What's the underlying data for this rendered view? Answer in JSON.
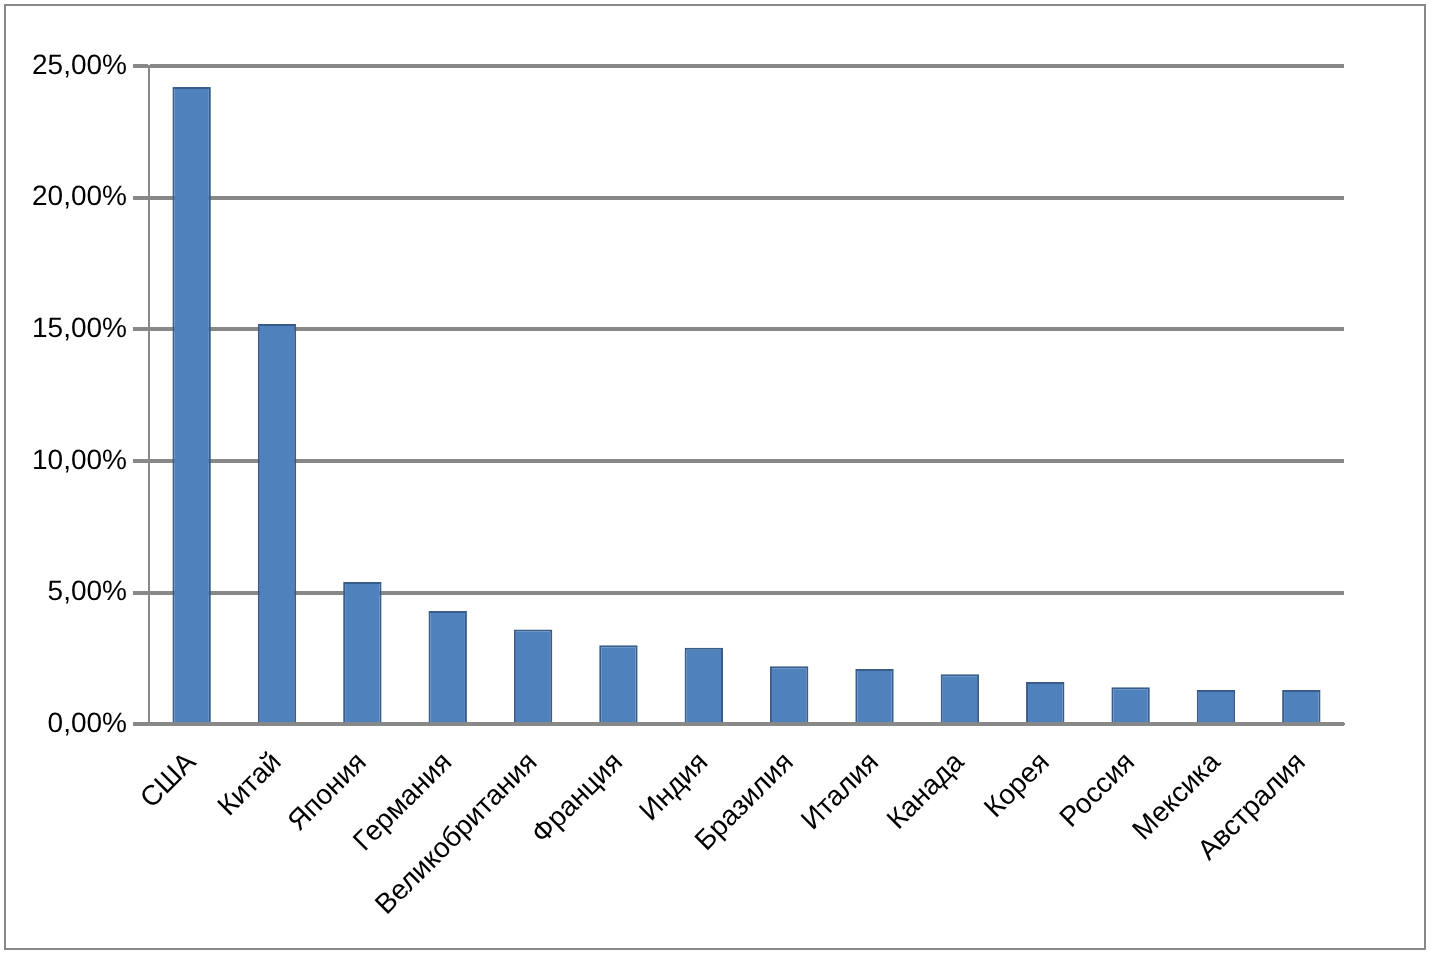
{
  "chart_data": {
    "type": "bar",
    "categories": [
      "США",
      "Китай",
      "Япония",
      "Германия",
      "Великобритания",
      "Франция",
      "Индия",
      "Бразилия",
      "Италия",
      "Канада",
      "Корея",
      "Россия",
      "Мексика",
      "Австралия"
    ],
    "values": [
      24.2,
      15.2,
      5.4,
      4.3,
      3.6,
      3.0,
      2.9,
      2.2,
      2.1,
      1.9,
      1.6,
      1.4,
      1.3,
      1.3
    ],
    "color": "#4f81bd",
    "ylim": [
      0,
      25
    ],
    "yticks": [
      {
        "value": 0,
        "label": "0,00%"
      },
      {
        "value": 5,
        "label": "5,00%"
      },
      {
        "value": 10,
        "label": "10,00%"
      },
      {
        "value": 15,
        "label": "15,00%"
      },
      {
        "value": 20,
        "label": "20,00%"
      },
      {
        "value": 25,
        "label": "25,00%"
      }
    ],
    "grid": "y"
  }
}
